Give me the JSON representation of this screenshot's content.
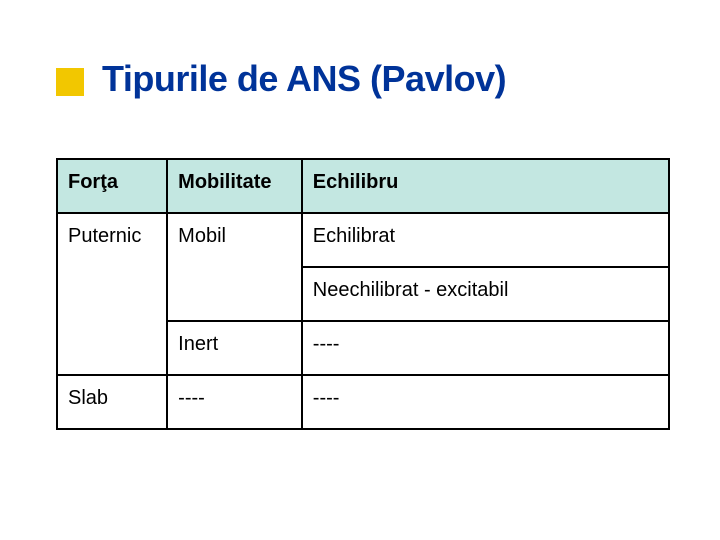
{
  "title": "Tipurile de ANS (Pavlov)",
  "title_color": "#003399",
  "title_fontsize": 36,
  "bullet_color": "#f2c700",
  "table": {
    "header_bg": "#c3e7e1",
    "border_color": "#000000",
    "cell_bg": "#ffffff",
    "font_size": 20,
    "columns": [
      "Forţa",
      "Mobilitate",
      "Echilibru"
    ],
    "column_widths_pct": [
      18,
      22,
      60
    ],
    "rows": [
      {
        "forta": "Puternic",
        "mobilitate": "Mobil",
        "echilibru": "Echilibrat",
        "forta_rowspan": 3,
        "mobilitate_rowspan": 2
      },
      {
        "echilibru": "Neechilibrat - excitabil"
      },
      {
        "mobilitate": "Inert",
        "echilibru": "----"
      },
      {
        "forta": "Slab",
        "mobilitate": "----",
        "echilibru": "----"
      }
    ]
  }
}
